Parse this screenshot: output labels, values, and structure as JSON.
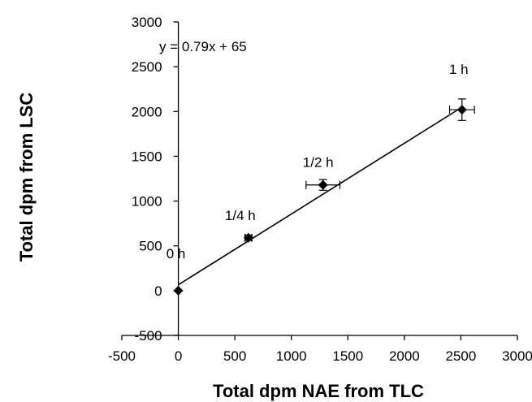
{
  "chart_data": {
    "type": "scatter",
    "title": "",
    "xlabel": "Total dpm NAE from TLC",
    "ylabel": "Total dpm from LSC",
    "xlim": [
      -500,
      3000
    ],
    "ylim": [
      -500,
      3000
    ],
    "xticks": [
      -500,
      0,
      500,
      1000,
      1500,
      2000,
      2500,
      3000
    ],
    "yticks": [
      -500,
      0,
      500,
      1000,
      1500,
      2000,
      2500,
      3000
    ],
    "grid": false,
    "series": [
      {
        "marker": "diamond",
        "color": "#000000",
        "points": [
          {
            "label": "0 h",
            "x": 0,
            "y": 0,
            "x_err": 0,
            "y_err": 0
          },
          {
            "label": "1/4 h",
            "x": 620,
            "y": 590,
            "x_err": 30,
            "y_err": 30
          },
          {
            "label": "1/2 h",
            "x": 1280,
            "y": 1180,
            "x_err": 150,
            "y_err": 60
          },
          {
            "label": "1 h",
            "x": 2510,
            "y": 2020,
            "x_err": 110,
            "y_err": 120
          }
        ]
      }
    ],
    "trendline": {
      "equation": "y = 0.79x + 65",
      "slope": 0.79,
      "intercept": 65,
      "x_range": [
        0,
        2510
      ]
    }
  }
}
